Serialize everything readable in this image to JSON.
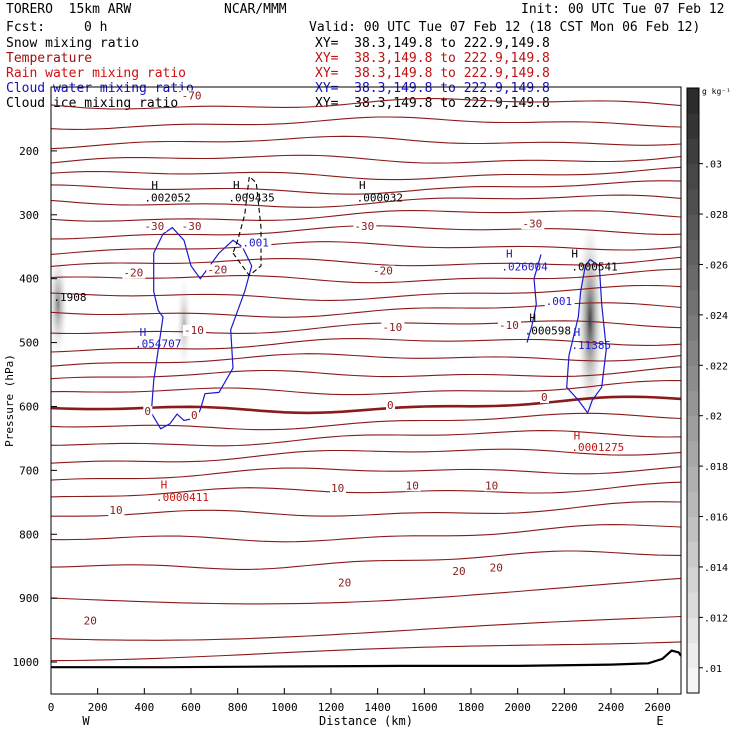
{
  "header": {
    "model": "TORERO  15km ARW",
    "center": "NCAR/MMM",
    "init": "Init: 00 UTC Tue 07 Feb 12",
    "fcst_label": "Fcst:",
    "fcst_value": "0 h",
    "valid": "Valid: 00 UTC Tue 07 Feb 12 (18 CST Mon 06 Feb 12)"
  },
  "fields": [
    {
      "name": "Snow mixing ratio",
      "xy": "XY=  38.3,149.8 to 222.9,149.8",
      "color": "#000000",
      "xy_color": "#000000"
    },
    {
      "name": "Temperature",
      "xy": "XY=  38.3,149.8 to 222.9,149.8",
      "color": "#a01010",
      "xy_color": "#c01010"
    },
    {
      "name": "Rain water mixing ratio",
      "xy": "XY=  38.3,149.8 to 222.9,149.8",
      "color": "#d01010",
      "xy_color": "#c01010"
    },
    {
      "name": "Cloud water mixing ratio",
      "xy": "XY=  38.3,149.8 to 222.9,149.8",
      "color": "#1010c0",
      "xy_color": "#1010c0"
    },
    {
      "name": "Cloud ice mixing ratio",
      "xy": "XY=  38.3,149.8 to 222.9,149.8",
      "color": "#000000",
      "xy_color": "#000000"
    }
  ],
  "chart_data": {
    "type": "cross-section",
    "xlabel": "Distance (km)",
    "ylabel": "Pressure (hPa)",
    "xlim": [
      0,
      2700
    ],
    "ylim": [
      1050,
      100
    ],
    "x_ticks": [
      0,
      200,
      400,
      600,
      800,
      1000,
      1200,
      1400,
      1600,
      1800,
      2000,
      2200,
      2400,
      2600
    ],
    "y_ticks": [
      200,
      300,
      400,
      500,
      600,
      700,
      800,
      900,
      1000
    ],
    "y_tick_labels": [
      "200",
      "300",
      "400",
      "500",
      "600",
      "700",
      "800",
      "900",
      "1000"
    ],
    "end_labels": {
      "left": "W",
      "right": "E"
    },
    "colorbar": {
      "unit": "g kg⁻¹",
      "ticks": [
        0.01,
        0.012,
        0.014,
        0.016,
        0.018,
        0.02,
        0.022,
        0.024,
        0.026,
        0.028,
        0.03
      ],
      "tick_labels": [
        ".01",
        ".012",
        ".014",
        ".016",
        ".018",
        ".02",
        ".022",
        ".024",
        ".026",
        ".028",
        ".03"
      ],
      "range": [
        0.009,
        0.033
      ]
    },
    "temperature_contours": {
      "color": "#8b1a1a",
      "interval_C": 5,
      "levels_left_hPa": [
        128,
        158,
        188,
        216,
        240,
        262,
        283,
        305,
        330,
        355,
        380,
        404,
        430,
        456,
        482,
        508,
        532,
        557,
        582,
        608,
        633,
        658,
        684,
        712,
        742,
        775,
        812,
        853,
        902,
        958,
        990
      ],
      "freezing_level_hPa": 608,
      "labels": [
        {
          "text": "-70",
          "x": 560,
          "p": 118
        },
        {
          "text": "-30",
          "x": 400,
          "p": 322
        },
        {
          "text": "-30",
          "x": 560,
          "p": 322
        },
        {
          "text": "-30",
          "x": 1300,
          "p": 322
        },
        {
          "text": "-30",
          "x": 2020,
          "p": 318
        },
        {
          "text": "-20",
          "x": 310,
          "p": 395
        },
        {
          "text": "-20",
          "x": 670,
          "p": 390
        },
        {
          "text": "-20",
          "x": 1380,
          "p": 392
        },
        {
          "text": "-10",
          "x": 570,
          "p": 485
        },
        {
          "text": "-10",
          "x": 1420,
          "p": 480
        },
        {
          "text": "-10",
          "x": 1920,
          "p": 477
        },
        {
          "text": "0",
          "x": 400,
          "p": 612
        },
        {
          "text": "0",
          "x": 600,
          "p": 618
        },
        {
          "text": "0",
          "x": 1440,
          "p": 602
        },
        {
          "text": "0",
          "x": 2100,
          "p": 590
        },
        {
          "text": "10",
          "x": 250,
          "p": 767
        },
        {
          "text": "10",
          "x": 1200,
          "p": 732
        },
        {
          "text": "10",
          "x": 1520,
          "p": 728
        },
        {
          "text": "10",
          "x": 1860,
          "p": 728
        },
        {
          "text": "20",
          "x": 1230,
          "p": 880
        },
        {
          "text": "20",
          "x": 1720,
          "p": 862
        },
        {
          "text": "20",
          "x": 1880,
          "p": 857
        },
        {
          "text": "20",
          "x": 140,
          "p": 940
        }
      ]
    },
    "cloud_water_contour": {
      "color": "#1a1acc",
      "level": ".001",
      "label_positions": [
        {
          "x": 820,
          "p": 348
        },
        {
          "x": 2120,
          "p": 440
        }
      ],
      "west_cell": [
        [
          480,
          460
        ],
        [
          440,
          560
        ],
        [
          430,
          610
        ],
        [
          470,
          635
        ],
        [
          510,
          627
        ],
        [
          540,
          612
        ],
        [
          570,
          622
        ],
        [
          620,
          618
        ],
        [
          640,
          605
        ],
        [
          660,
          580
        ],
        [
          720,
          578
        ],
        [
          780,
          540
        ],
        [
          770,
          480
        ],
        [
          830,
          420
        ],
        [
          860,
          380
        ],
        [
          820,
          350
        ],
        [
          780,
          340
        ],
        [
          720,
          360
        ],
        [
          640,
          400
        ],
        [
          600,
          380
        ],
        [
          570,
          340
        ],
        [
          520,
          320
        ],
        [
          480,
          330
        ],
        [
          440,
          360
        ],
        [
          440,
          420
        ],
        [
          460,
          450
        ],
        [
          480,
          460
        ]
      ],
      "east_cell": [
        [
          2260,
          460
        ],
        [
          2220,
          520
        ],
        [
          2210,
          570
        ],
        [
          2260,
          590
        ],
        [
          2300,
          610
        ],
        [
          2320,
          590
        ],
        [
          2360,
          570
        ],
        [
          2380,
          510
        ],
        [
          2360,
          440
        ],
        [
          2350,
          380
        ],
        [
          2310,
          370
        ],
        [
          2290,
          380
        ],
        [
          2270,
          420
        ],
        [
          2260,
          460
        ]
      ],
      "east_hook": [
        [
          2100,
          362
        ],
        [
          2070,
          400
        ],
        [
          2080,
          440
        ],
        [
          2060,
          475
        ],
        [
          2040,
          500
        ]
      ]
    },
    "cloud_ice_contour": {
      "color": "#000000",
      "style": "dashed",
      "path": [
        [
          780,
          360
        ],
        [
          850,
          395
        ],
        [
          900,
          380
        ],
        [
          900,
          320
        ],
        [
          880,
          250
        ],
        [
          850,
          240
        ],
        [
          830,
          300
        ],
        [
          800,
          340
        ],
        [
          780,
          360
        ]
      ]
    },
    "shading": [
      {
        "x": 30,
        "p": 440,
        "rx_km": 45,
        "ry_hPa": 90,
        "max": 0.022
      },
      {
        "x": 570,
        "p": 470,
        "rx_km": 35,
        "ry_hPa": 80,
        "max": 0.016
      },
      {
        "x": 2310,
        "p": 465,
        "rx_km": 60,
        "ry_hPa": 170,
        "max": 0.03
      }
    ],
    "annotations": [
      {
        "text": "H",
        "x": 430,
        "p": 260,
        "color": "#000000"
      },
      {
        "text": ".002052",
        "x": 400,
        "p": 279,
        "color": "#000000"
      },
      {
        "text": "H",
        "x": 780,
        "p": 260,
        "color": "#000000"
      },
      {
        "text": ".009435",
        "x": 760,
        "p": 279,
        "color": "#000000"
      },
      {
        "text": "H",
        "x": 1320,
        "p": 260,
        "color": "#000000"
      },
      {
        "text": ".000032",
        "x": 1310,
        "p": 279,
        "color": "#000000"
      },
      {
        "text": ".1908",
        "x": 10,
        "p": 435,
        "color": "#000000"
      },
      {
        "text": "H",
        "x": 380,
        "p": 490,
        "color": "#1a1acc"
      },
      {
        "text": ".054707",
        "x": 360,
        "p": 508,
        "color": "#1a1acc"
      },
      {
        "text": "H",
        "x": 1950,
        "p": 367,
        "color": "#1a1acc"
      },
      {
        "text": ".026004",
        "x": 1930,
        "p": 387,
        "color": "#1a1acc"
      },
      {
        "text": "H",
        "x": 2050,
        "p": 467,
        "color": "#000000"
      },
      {
        "text": ".000598",
        "x": 2030,
        "p": 487,
        "color": "#000000"
      },
      {
        "text": "H",
        "x": 2230,
        "p": 367,
        "color": "#000000"
      },
      {
        "text": ".000541",
        "x": 2230,
        "p": 387,
        "color": "#000000"
      },
      {
        "text": "H",
        "x": 2240,
        "p": 490,
        "color": "#1a1acc"
      },
      {
        "text": ".11385",
        "x": 2230,
        "p": 510,
        "color": "#1a1acc"
      },
      {
        "text": "H",
        "x": 2240,
        "p": 652,
        "color": "#cc1010"
      },
      {
        "text": ".0001275",
        "x": 2230,
        "p": 670,
        "color": "#cc1010"
      },
      {
        "text": "H",
        "x": 470,
        "p": 728,
        "color": "#cc1010"
      },
      {
        "text": ".0000411",
        "x": 450,
        "p": 748,
        "color": "#cc1010"
      }
    ],
    "terrain": {
      "color": "#000000",
      "points": [
        [
          0,
          1008
        ],
        [
          500,
          1008
        ],
        [
          1000,
          1007
        ],
        [
          1500,
          1006
        ],
        [
          2000,
          1006
        ],
        [
          2400,
          1004
        ],
        [
          2560,
          1002
        ],
        [
          2620,
          995
        ],
        [
          2660,
          982
        ],
        [
          2690,
          985
        ],
        [
          2700,
          990
        ]
      ]
    }
  }
}
